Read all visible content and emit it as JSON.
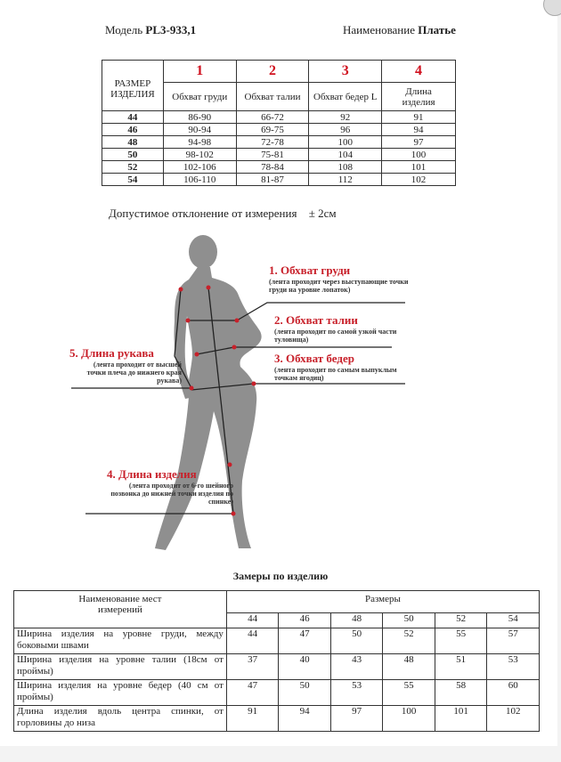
{
  "header": {
    "model_label": "Модель",
    "model_value": "PL3-933,1",
    "name_label": "Наименование",
    "name_value": "Платье"
  },
  "size_table": {
    "size_header": "РАЗМЕР ИЗДЕЛИЯ",
    "columns": [
      {
        "num": "1",
        "label": "Обхват груди"
      },
      {
        "num": "2",
        "label": "Обхват талии"
      },
      {
        "num": "3",
        "label": "Обхват бедер L"
      },
      {
        "num": "4",
        "label": "Длина изделия"
      }
    ],
    "rows": [
      [
        "44",
        "86-90",
        "66-72",
        "92",
        "91"
      ],
      [
        "46",
        "90-94",
        "69-75",
        "96",
        "94"
      ],
      [
        "48",
        "94-98",
        "72-78",
        "100",
        "97"
      ],
      [
        "50",
        "98-102",
        "75-81",
        "104",
        "100"
      ],
      [
        "52",
        "102-106",
        "78-84",
        "108",
        "101"
      ],
      [
        "54",
        "106-110",
        "81-87",
        "112",
        "102"
      ]
    ]
  },
  "tolerance": {
    "text": "Допустимое отклонение от измерения",
    "value": "± 2см"
  },
  "figure": {
    "labels": [
      {
        "title": "1. Обхват груди",
        "note": "(лента проходит через выступающие точки груди на уровне лопаток)"
      },
      {
        "title": "2. Обхват талии",
        "note": "(лента проходит по самой узкой части туловища)"
      },
      {
        "title": "3. Обхват бедер",
        "note": "(лента проходит по самым выпуклым точкам ягодиц)"
      },
      {
        "title": "4. Длина изделия",
        "note": "(лента проходит от 6-го шейного позвонка до нижней точки изделия по спинке)"
      },
      {
        "title": "5. Длина рукава",
        "note": "(лента проходит от высшей точки плеча до нижнего края рукава)"
      }
    ],
    "accent_color": "#c8202a"
  },
  "garment_table": {
    "title": "Замеры по изделию",
    "name_header": "Наименование мест измерений",
    "sizes_header": "Размеры",
    "sizes": [
      "44",
      "46",
      "48",
      "50",
      "52",
      "54"
    ],
    "rows": [
      {
        "label": "Ширина изделия на уровне груди, между боковыми швами",
        "values": [
          "44",
          "47",
          "50",
          "52",
          "55",
          "57"
        ]
      },
      {
        "label": "Ширина изделия на уровне талии (18см от проймы)",
        "values": [
          "37",
          "40",
          "43",
          "48",
          "51",
          "53"
        ]
      },
      {
        "label": "Ширина изделия на уровне бедер (40 см от проймы)",
        "values": [
          "47",
          "50",
          "53",
          "55",
          "58",
          "60"
        ]
      },
      {
        "label": "Длина изделия вдоль центра спинки, от горловины до низа",
        "values": [
          "91",
          "94",
          "97",
          "100",
          "101",
          "102"
        ]
      }
    ]
  }
}
